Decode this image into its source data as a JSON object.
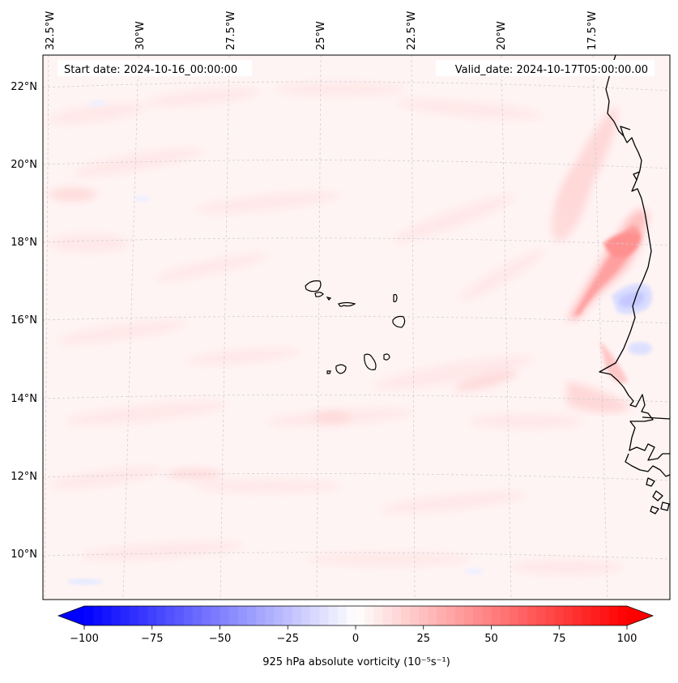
{
  "header": {
    "start_date": "Start date: 2024-10-16_00:00:00",
    "valid_date": "Valid_date: 2024-10-17T05:00:00.00"
  },
  "longitude_labels": [
    "32.5°W",
    "30°W",
    "27.5°W",
    "25°W",
    "22.5°W",
    "20°W",
    "17.5°W"
  ],
  "latitude_labels": [
    "22°N",
    "20°N",
    "18°N",
    "16°N",
    "14°N",
    "12°N",
    "10°N"
  ],
  "colorbar": {
    "label": "925 hPa absolute vorticity (10⁻⁵s⁻¹)",
    "ticks": [
      "−100",
      "−75",
      "−50",
      "−25",
      "0",
      "25",
      "50",
      "75",
      "100"
    ],
    "min": -100,
    "max": 100,
    "levels": 60,
    "negative_color": "#0000ff",
    "neutral_color": "#ffffff",
    "positive_color": "#ff0000"
  },
  "colors": {
    "background_field": "#fff3f3",
    "light_positive": "#ffe4e4",
    "mid_positive": "#ffcccc",
    "strong_positive": "#ffa8a8",
    "light_negative": "#eef0ff",
    "mid_negative": "#d8dcff",
    "coastline": "#000000",
    "gridline": "#c8c8c8"
  }
}
